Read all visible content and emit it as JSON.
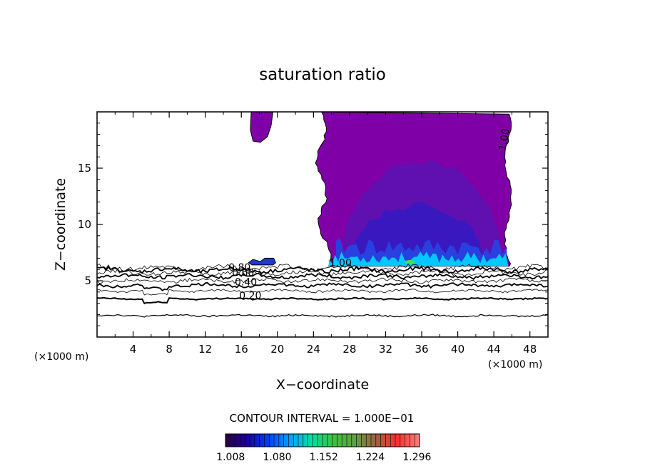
{
  "chart_data": {
    "type": "contour",
    "title": "saturation ratio",
    "xlabel": "X−coordinate",
    "ylabel": "Z−coordinate",
    "x_unit_left": "(×1000 m)",
    "x_unit_right": "(×1000 m)",
    "xlim": [
      0,
      50
    ],
    "ylim": [
      0,
      20
    ],
    "x_ticks": [
      4,
      8,
      12,
      16,
      20,
      24,
      28,
      32,
      36,
      40,
      44,
      48
    ],
    "y_ticks": [
      5,
      10,
      15
    ],
    "contour_interval_text": "CONTOUR INTERVAL = 1.000E−01",
    "contour_levels": [
      0.1,
      0.2,
      0.3,
      0.4,
      0.5,
      0.6,
      0.7,
      0.8,
      0.9,
      1.0
    ],
    "contour_labels": [
      {
        "text": "0.80",
        "x": 15.8,
        "z": 5.9
      },
      {
        "text": "0.60",
        "x": 16.2,
        "z": 5.4
      },
      {
        "text": "0.40",
        "x": 16.5,
        "z": 4.6
      },
      {
        "text": "0.20",
        "x": 17.0,
        "z": 3.4
      },
      {
        "text": "1.00",
        "x": 27.0,
        "z": 6.3
      },
      {
        "text": "1.00",
        "x": 45.5,
        "z": 17.5
      }
    ],
    "colorbar": {
      "ticks": [
        1.008,
        1.08,
        1.152,
        1.224,
        1.296
      ],
      "tick_labels": [
        "1.008",
        "1.080",
        "1.152",
        "1.224",
        "1.296"
      ],
      "range": [
        1.0,
        1.3
      ],
      "colors": [
        "#2a0040",
        "#1a00a0",
        "#0040ff",
        "#00a0ff",
        "#00e0a0",
        "#40c040",
        "#60a040",
        "#a06040",
        "#ff3030",
        "#ff8080"
      ]
    },
    "fill_colors": {
      "saturated": "#8000a8",
      "moderate": "#6010b0",
      "high": "#3a18c0",
      "very_high": "#2840e0",
      "cyan": "#00c8ff",
      "green": "#40e060"
    },
    "grid": false,
    "legend": "none"
  }
}
